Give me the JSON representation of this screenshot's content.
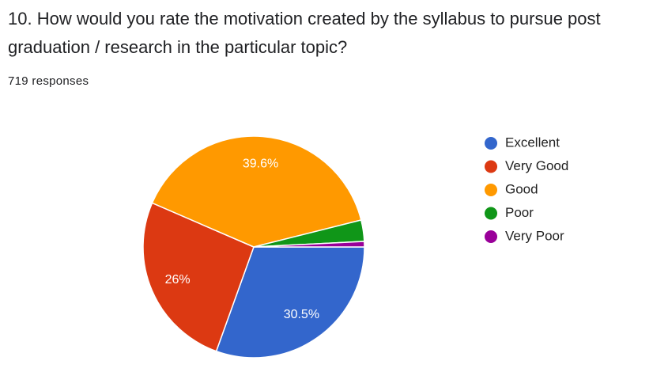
{
  "chart_data": {
    "type": "pie",
    "title": "10. How would you rate the motivation created by the syllabus to pursue post graduation / research in the particular topic?",
    "subtitle": "719 responses",
    "categories": [
      "Excellent",
      "Very Good",
      "Good",
      "Poor",
      "Very Poor"
    ],
    "values": [
      30.5,
      26,
      39.6,
      3.1,
      0.8
    ],
    "value_labels": [
      "30.5%",
      "26%",
      "39.6%",
      null,
      null
    ],
    "colors": [
      "#3366cc",
      "#dc3912",
      "#ff9900",
      "#109618",
      "#990099"
    ],
    "legend": "right"
  }
}
